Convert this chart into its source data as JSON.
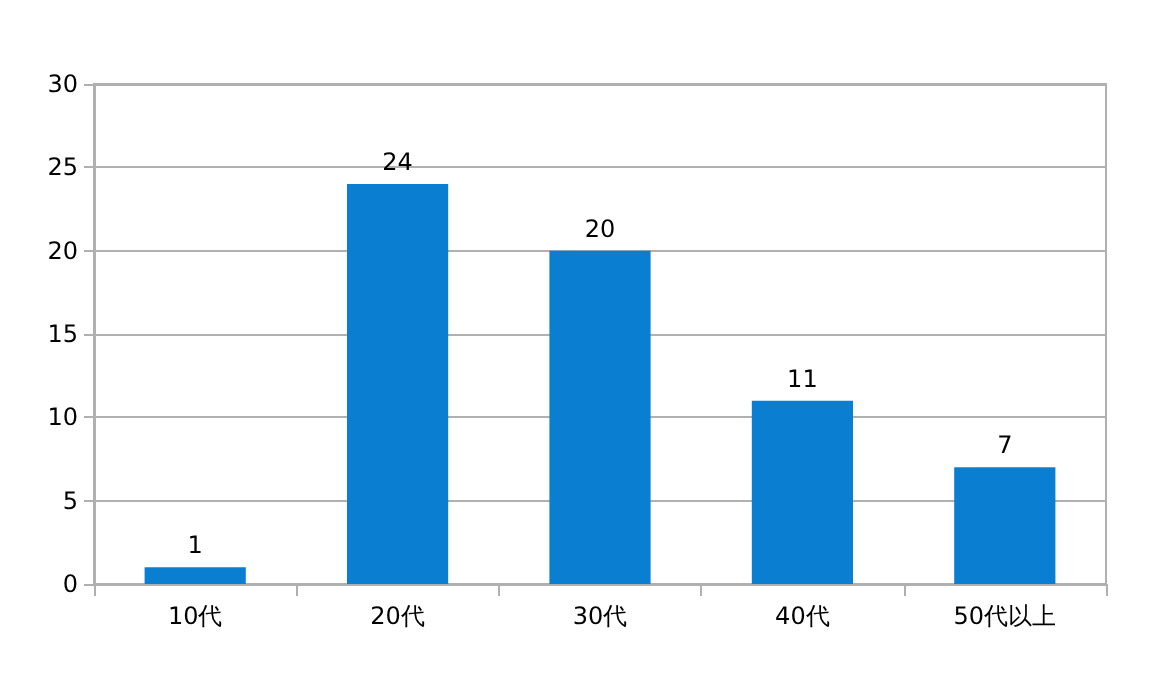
{
  "chart_data": {
    "type": "bar",
    "categories": [
      "10代",
      "20代",
      "30代",
      "40代",
      "50代以上"
    ],
    "values": [
      1,
      24,
      20,
      11,
      7
    ],
    "color": "#0a7fd2",
    "ylim": [
      0,
      30
    ],
    "yticks": [
      0,
      5,
      10,
      15,
      20,
      25,
      30
    ],
    "grid": "y",
    "data_labels": true
  }
}
